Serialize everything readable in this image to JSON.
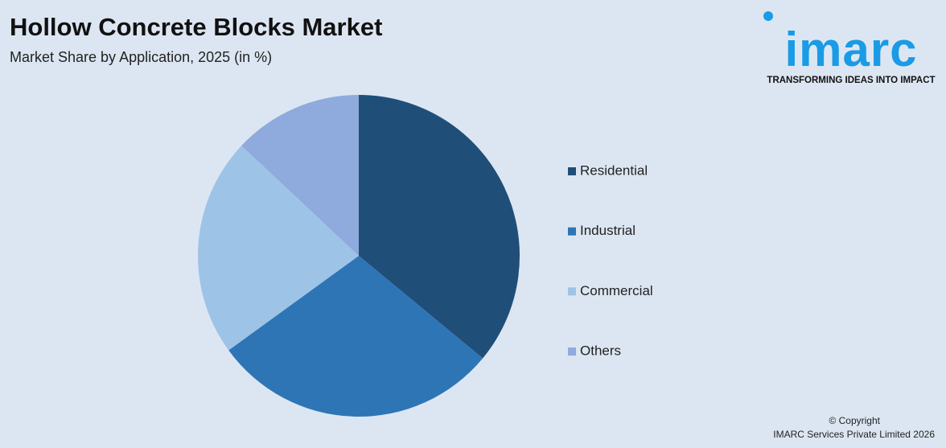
{
  "chart_data": {
    "type": "pie",
    "title": "Hollow Concrete Blocks Market",
    "subtitle": "Market Share by Application, 2025 (in %)",
    "categories": [
      "Residential",
      "Industrial",
      "Commercial",
      "Others"
    ],
    "values": [
      36,
      29,
      22,
      13
    ],
    "colors": [
      "#1f4e79",
      "#2e75b6",
      "#9dc3e6",
      "#8faadc"
    ],
    "legend": "right"
  },
  "logo": {
    "name": "imarc",
    "tagline": "TRANSFORMING IDEAS INTO IMPACT"
  },
  "copyright": [
    "© Copyright",
    "IMARC Services Private Limited 2026"
  ]
}
